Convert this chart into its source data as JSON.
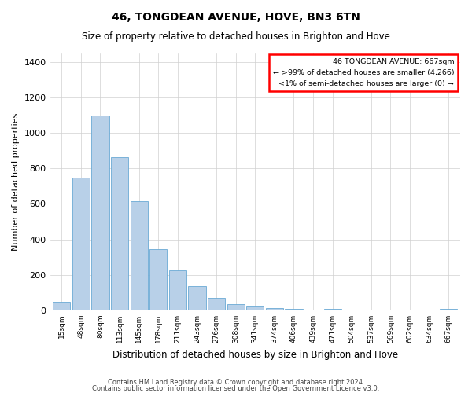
{
  "title": "46, TONGDEAN AVENUE, HOVE, BN3 6TN",
  "subtitle": "Size of property relative to detached houses in Brighton and Hove",
  "xlabel": "Distribution of detached houses by size in Brighton and Hove",
  "ylabel": "Number of detached properties",
  "categories": [
    "15sqm",
    "48sqm",
    "80sqm",
    "113sqm",
    "145sqm",
    "178sqm",
    "211sqm",
    "243sqm",
    "276sqm",
    "308sqm",
    "341sqm",
    "374sqm",
    "406sqm",
    "439sqm",
    "471sqm",
    "504sqm",
    "537sqm",
    "569sqm",
    "602sqm",
    "634sqm",
    "667sqm"
  ],
  "bar_heights": [
    50,
    750,
    1100,
    865,
    615,
    345,
    225,
    135,
    70,
    35,
    25,
    15,
    10,
    5,
    10,
    0,
    0,
    0,
    0,
    0,
    10
  ],
  "bar_color": "#b8d0e8",
  "bar_edge_color": "#6aaad4",
  "ylim": [
    0,
    1450
  ],
  "yticks": [
    0,
    200,
    400,
    600,
    800,
    1000,
    1200,
    1400
  ],
  "annotation_line1": "46 TONGDEAN AVENUE: 667sqm",
  "annotation_line2": "← >99% of detached houses are smaller (4,266)",
  "annotation_line3": "<1% of semi-detached houses are larger (0) →",
  "footer1": "Contains HM Land Registry data © Crown copyright and database right 2024.",
  "footer2": "Contains public sector information licensed under the Open Government Licence v3.0.",
  "grid_color": "#d0d0d0",
  "background_color": "#ffffff"
}
